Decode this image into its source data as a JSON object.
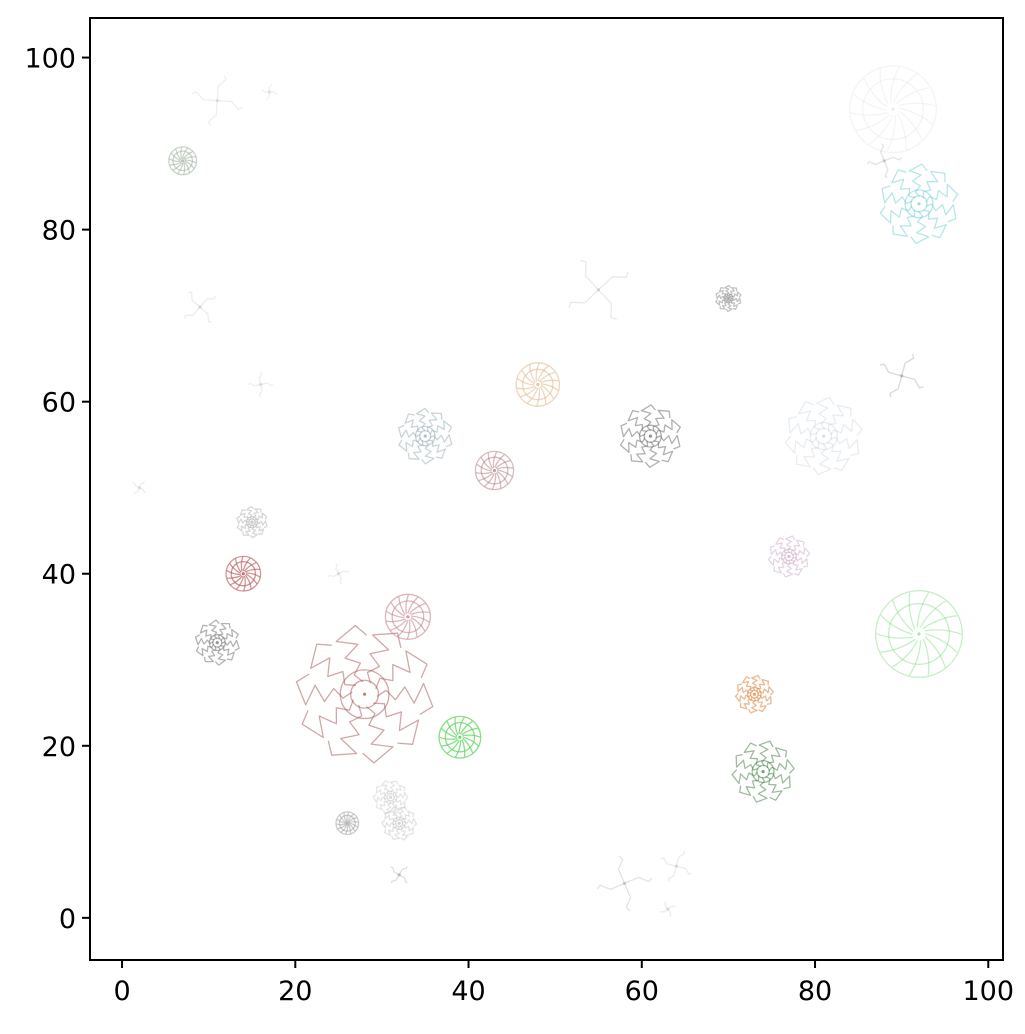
{
  "chart_data": {
    "type": "scatter",
    "title": "",
    "xlabel": "",
    "ylabel": "",
    "xlim": [
      -3.7,
      101.7
    ],
    "ylim": [
      -4.9,
      104.6
    ],
    "xticks": [
      0,
      20,
      40,
      60,
      80,
      100
    ],
    "yticks": [
      0,
      20,
      40,
      60,
      80,
      100
    ],
    "xtick_labels": [
      "0",
      "20",
      "40",
      "60",
      "80",
      "100"
    ],
    "ytick_labels": [
      "0",
      "20",
      "40",
      "60",
      "80",
      "100"
    ],
    "grid": false,
    "legend": "none",
    "points": [
      {
        "x": 28,
        "y": 26,
        "size": 8,
        "color": "#a0524f",
        "alpha": 0.5,
        "style": "spiky"
      },
      {
        "x": 33,
        "y": 35,
        "size": 2.6,
        "color": "#c27b8a",
        "alpha": 0.55,
        "style": "ring"
      },
      {
        "x": 39,
        "y": 21,
        "size": 2.4,
        "color": "#5fd65f",
        "alpha": 0.75,
        "style": "ring"
      },
      {
        "x": 14,
        "y": 40,
        "size": 2.0,
        "color": "#b85a5a",
        "alpha": 0.65,
        "style": "ring"
      },
      {
        "x": 11,
        "y": 32,
        "size": 2.6,
        "color": "#808080",
        "alpha": 0.6,
        "style": "spiky"
      },
      {
        "x": 15,
        "y": 46,
        "size": 1.8,
        "color": "#b0b0b0",
        "alpha": 0.5,
        "style": "spiky"
      },
      {
        "x": 43,
        "y": 52,
        "size": 2.2,
        "color": "#b07880",
        "alpha": 0.5,
        "style": "ring"
      },
      {
        "x": 35,
        "y": 56,
        "size": 3.2,
        "color": "#8aa0a8",
        "alpha": 0.45,
        "style": "spiky"
      },
      {
        "x": 48,
        "y": 62,
        "size": 2.5,
        "color": "#e0b080",
        "alpha": 0.5,
        "style": "ring"
      },
      {
        "x": 61,
        "y": 56,
        "size": 3.6,
        "color": "#707070",
        "alpha": 0.55,
        "style": "spiky"
      },
      {
        "x": 70,
        "y": 72,
        "size": 1.5,
        "color": "#909090",
        "alpha": 0.55,
        "style": "spiky"
      },
      {
        "x": 55,
        "y": 73,
        "size": 4.0,
        "color": "#c0c0c0",
        "alpha": 0.35,
        "style": "pinwheel"
      },
      {
        "x": 92,
        "y": 83,
        "size": 4.6,
        "color": "#5fc8d0",
        "alpha": 0.45,
        "style": "spiky"
      },
      {
        "x": 89,
        "y": 94,
        "size": 5.0,
        "color": "#e0d0d0",
        "alpha": 0.25,
        "style": "ring"
      },
      {
        "x": 88,
        "y": 88,
        "size": 2.0,
        "color": "#b0b0b0",
        "alpha": 0.35,
        "style": "pinwheel"
      },
      {
        "x": 90,
        "y": 63,
        "size": 2.8,
        "color": "#a0a0a0",
        "alpha": 0.4,
        "style": "pinwheel"
      },
      {
        "x": 81,
        "y": 56,
        "size": 4.5,
        "color": "#a8b8c8",
        "alpha": 0.25,
        "style": "spiky"
      },
      {
        "x": 77,
        "y": 42,
        "size": 2.4,
        "color": "#c8a0c0",
        "alpha": 0.45,
        "style": "spiky"
      },
      {
        "x": 92,
        "y": 33,
        "size": 5.0,
        "color": "#70d870",
        "alpha": 0.4,
        "style": "ring"
      },
      {
        "x": 73,
        "y": 26,
        "size": 2.2,
        "color": "#e08a4a",
        "alpha": 0.6,
        "style": "spiky"
      },
      {
        "x": 74,
        "y": 17,
        "size": 3.6,
        "color": "#3f7a3f",
        "alpha": 0.5,
        "style": "spiky"
      },
      {
        "x": 7,
        "y": 88,
        "size": 1.6,
        "color": "#a0b0a0",
        "alpha": 0.55,
        "style": "ring"
      },
      {
        "x": 11,
        "y": 95,
        "size": 3.0,
        "color": "#c8c8c8",
        "alpha": 0.3,
        "style": "pinwheel"
      },
      {
        "x": 9,
        "y": 71,
        "size": 2.2,
        "color": "#c0c0c0",
        "alpha": 0.3,
        "style": "pinwheel"
      },
      {
        "x": 16,
        "y": 62,
        "size": 1.4,
        "color": "#c8c8c8",
        "alpha": 0.3,
        "style": "pinwheel"
      },
      {
        "x": 2,
        "y": 50,
        "size": 0.9,
        "color": "#c8c8c8",
        "alpha": 0.3,
        "style": "pinwheel"
      },
      {
        "x": 25,
        "y": 40,
        "size": 1.2,
        "color": "#c8c8c8",
        "alpha": 0.3,
        "style": "pinwheel"
      },
      {
        "x": 31,
        "y": 14,
        "size": 2.0,
        "color": "#c0c0c0",
        "alpha": 0.4,
        "style": "spiky"
      },
      {
        "x": 32,
        "y": 11,
        "size": 2.0,
        "color": "#b0b0b0",
        "alpha": 0.35,
        "style": "spiky"
      },
      {
        "x": 26,
        "y": 11,
        "size": 1.3,
        "color": "#909090",
        "alpha": 0.45,
        "style": "ring"
      },
      {
        "x": 32,
        "y": 5,
        "size": 1.3,
        "color": "#a0a0a0",
        "alpha": 0.35,
        "style": "pinwheel"
      },
      {
        "x": 58,
        "y": 4,
        "size": 3.2,
        "color": "#b0b0b0",
        "alpha": 0.35,
        "style": "pinwheel"
      },
      {
        "x": 64,
        "y": 6,
        "size": 2.0,
        "color": "#c0c0c0",
        "alpha": 0.3,
        "style": "pinwheel"
      },
      {
        "x": 63,
        "y": 1,
        "size": 0.9,
        "color": "#c8c8c8",
        "alpha": 0.35,
        "style": "pinwheel"
      },
      {
        "x": 17,
        "y": 96,
        "size": 0.9,
        "color": "#d0d0d0",
        "alpha": 0.3,
        "style": "pinwheel"
      }
    ]
  }
}
